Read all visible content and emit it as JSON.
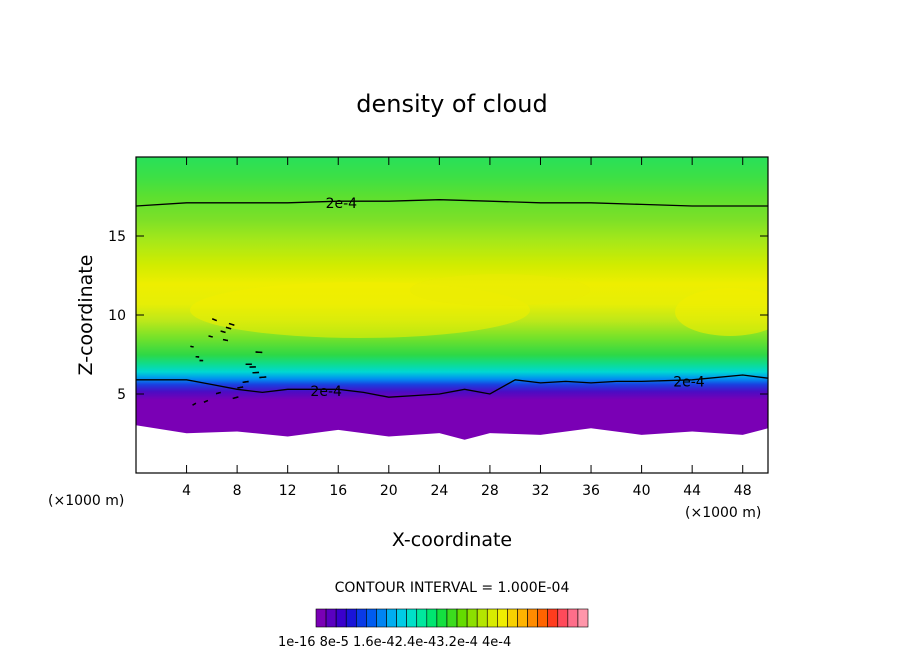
{
  "chart_data": {
    "type": "heatmap",
    "title": "density of cloud",
    "xlabel": "X-coordinate",
    "ylabel": "Z-coordinate",
    "x_units": "(×1000 m)",
    "y_units": "(×1000 m)",
    "xlim": [
      0,
      50
    ],
    "ylim": [
      0,
      20
    ],
    "x_ticks": [
      4,
      8,
      12,
      16,
      20,
      24,
      28,
      32,
      36,
      40,
      44,
      48
    ],
    "x_tick_labels": [
      "4",
      "8",
      "12",
      "16",
      "20",
      "24",
      "28",
      "32",
      "36",
      "40",
      "44",
      "48"
    ],
    "y_ticks": [
      5,
      10,
      15
    ],
    "y_tick_labels": [
      "5",
      "10",
      "15"
    ],
    "contour_interval_text": "CONTOUR INTERVAL = 1.000E-04",
    "contour_labels": [
      {
        "text": "2e-4",
        "x": 15.0,
        "z": 17.1
      },
      {
        "text": "2e-4",
        "x": 13.8,
        "z": 5.2
      },
      {
        "text": "2e-4",
        "x": 42.5,
        "z": 5.8
      }
    ],
    "upper_contour_z": [
      [
        0,
        16.9
      ],
      [
        4,
        17.1
      ],
      [
        8,
        17.1
      ],
      [
        12,
        17.1
      ],
      [
        16,
        17.2
      ],
      [
        20,
        17.2
      ],
      [
        24,
        17.3
      ],
      [
        28,
        17.2
      ],
      [
        32,
        17.1
      ],
      [
        36,
        17.1
      ],
      [
        40,
        17.0
      ],
      [
        44,
        16.9
      ],
      [
        48,
        16.9
      ],
      [
        50,
        16.9
      ]
    ],
    "lower_contour_z": [
      [
        0,
        5.9
      ],
      [
        4,
        5.9
      ],
      [
        6,
        5.6
      ],
      [
        8,
        5.3
      ],
      [
        10,
        5.1
      ],
      [
        12,
        5.3
      ],
      [
        14,
        5.3
      ],
      [
        16,
        5.3
      ],
      [
        18,
        5.1
      ],
      [
        20,
        4.8
      ],
      [
        22,
        4.9
      ],
      [
        24,
        5.0
      ],
      [
        26,
        5.3
      ],
      [
        28,
        5.0
      ],
      [
        30,
        5.9
      ],
      [
        32,
        5.7
      ],
      [
        34,
        5.8
      ],
      [
        36,
        5.7
      ],
      [
        38,
        5.8
      ],
      [
        40,
        5.8
      ],
      [
        44,
        5.9
      ],
      [
        48,
        6.2
      ],
      [
        50,
        6.0
      ]
    ],
    "cloud_base_z": [
      [
        0,
        2.9
      ],
      [
        4,
        2.7
      ],
      [
        8,
        2.5
      ],
      [
        12,
        2.5
      ],
      [
        16,
        2.6
      ],
      [
        20,
        2.5
      ],
      [
        24,
        2.4
      ],
      [
        26,
        2.3
      ],
      [
        28,
        2.4
      ],
      [
        32,
        2.6
      ],
      [
        36,
        2.7
      ],
      [
        40,
        2.6
      ],
      [
        44,
        2.5
      ],
      [
        48,
        2.6
      ],
      [
        50,
        2.7
      ]
    ],
    "colorbar": {
      "colors": [
        "#7a00b5",
        "#5a00c0",
        "#3a00cc",
        "#1a14d8",
        "#0a3ae6",
        "#005cf0",
        "#0084f2",
        "#00aef0",
        "#00cce6",
        "#00e0c8",
        "#00e89e",
        "#00e670",
        "#14e040",
        "#3cdc1e",
        "#64dc00",
        "#8ce000",
        "#b4e600",
        "#d8ec00",
        "#f0ee00",
        "#f8d200",
        "#ffb400",
        "#ff8c00",
        "#ff6400",
        "#ff3c1e",
        "#ff4a5a",
        "#ff6e8a",
        "#ff96aa"
      ],
      "tick_labels": [
        "1e-16",
        "8e-5",
        "1.6e-4",
        "2.4e-4",
        "3.2e-4",
        "4e-4"
      ],
      "printed_labels": "1e-16 8e-5 1.6e-42.4e-43.2e-4 4e-4"
    }
  }
}
